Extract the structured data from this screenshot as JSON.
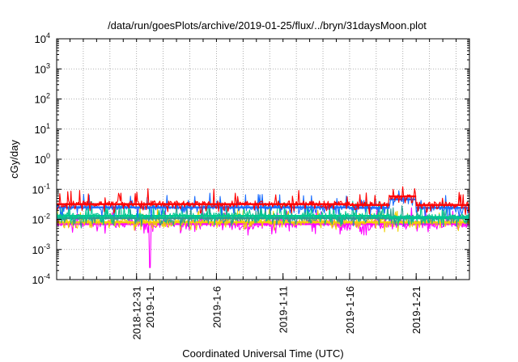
{
  "chart_data": {
    "type": "line",
    "title": "/data/run/goesPlots/archive/2019-01-25/flux/../bryn/31daysMoon.plot",
    "xlabel": "Coordinated Universal Time (UTC)",
    "ylabel": "cGy/day",
    "yscale": "log",
    "ylim": [
      0.0001,
      10000
    ],
    "xlim": [
      "2018-12-25",
      "2019-01-25"
    ],
    "grid": true,
    "x_ticks": [
      "2018-12-31",
      "2019-1-1",
      "2019-1-6",
      "2019-1-11",
      "2019-1-16",
      "2019-1-21"
    ],
    "x_tick_dates": [
      "2018-12-31",
      "2019-01-01",
      "2019-01-06",
      "2019-01-11",
      "2019-01-16",
      "2019-01-21"
    ],
    "y_ticks": [
      {
        "value": 0.0001,
        "base": "10",
        "exp": "-4"
      },
      {
        "value": 0.001,
        "base": "10",
        "exp": "-3"
      },
      {
        "value": 0.01,
        "base": "10",
        "exp": "-2"
      },
      {
        "value": 0.1,
        "base": "10",
        "exp": "-1"
      },
      {
        "value": 1,
        "base": "10",
        "exp": "0"
      },
      {
        "value": 10,
        "base": "10",
        "exp": "1"
      },
      {
        "value": 100,
        "base": "10",
        "exp": "2"
      },
      {
        "value": 1000,
        "base": "10",
        "exp": "3"
      },
      {
        "value": 10000,
        "base": "10",
        "exp": "4"
      }
    ],
    "series": [
      {
        "color": "#ff0000",
        "baseline": 0.032,
        "spread": 0.22,
        "segments": [
          {
            "from": "2018-12-25",
            "to": "2019-01-16",
            "level": 0.032
          },
          {
            "from": "2019-01-16",
            "to": "2019-01-19",
            "level": 0.03
          },
          {
            "from": "2019-01-19",
            "to": "2019-01-21",
            "level": 0.058
          },
          {
            "from": "2019-01-21",
            "to": "2019-01-25",
            "level": 0.03
          }
        ]
      },
      {
        "color": "#1a6cff",
        "baseline": 0.025,
        "spread": 0.2,
        "segments": [
          {
            "from": "2018-12-25",
            "to": "2019-01-16",
            "level": 0.025
          },
          {
            "from": "2019-01-16",
            "to": "2019-01-19",
            "level": 0.024
          },
          {
            "from": "2019-01-19",
            "to": "2019-01-21",
            "level": 0.046
          },
          {
            "from": "2019-01-21",
            "to": "2019-01-25",
            "level": 0.024
          }
        ]
      },
      {
        "color": "#00c890",
        "baseline": 0.013,
        "spread": 0.2,
        "segments": [
          {
            "from": "2018-12-25",
            "to": "2019-01-16",
            "level": 0.013
          },
          {
            "from": "2019-01-16",
            "to": "2019-01-19",
            "level": 0.013
          },
          {
            "from": "2019-01-19",
            "to": "2019-01-21",
            "level": 0.012
          },
          {
            "from": "2019-01-21",
            "to": "2019-01-25",
            "level": 0.012
          }
        ]
      },
      {
        "color": "#2a9d8f",
        "baseline": 0.011,
        "spread": 0.22,
        "segments": [
          {
            "from": "2018-12-25",
            "to": "2019-01-25",
            "level": 0.011
          }
        ]
      },
      {
        "color": "#f0d000",
        "baseline": 0.008,
        "spread": 0.22,
        "segments": [
          {
            "from": "2018-12-25",
            "to": "2019-01-25",
            "level": 0.008
          }
        ]
      },
      {
        "color": "#ff00ff",
        "baseline": 0.007,
        "spread": 0.28,
        "segments": [
          {
            "from": "2018-12-25",
            "to": "2019-01-25",
            "level": 0.007
          }
        ],
        "dip": {
          "date": "2019-01-01",
          "value": 0.00025
        }
      }
    ]
  }
}
